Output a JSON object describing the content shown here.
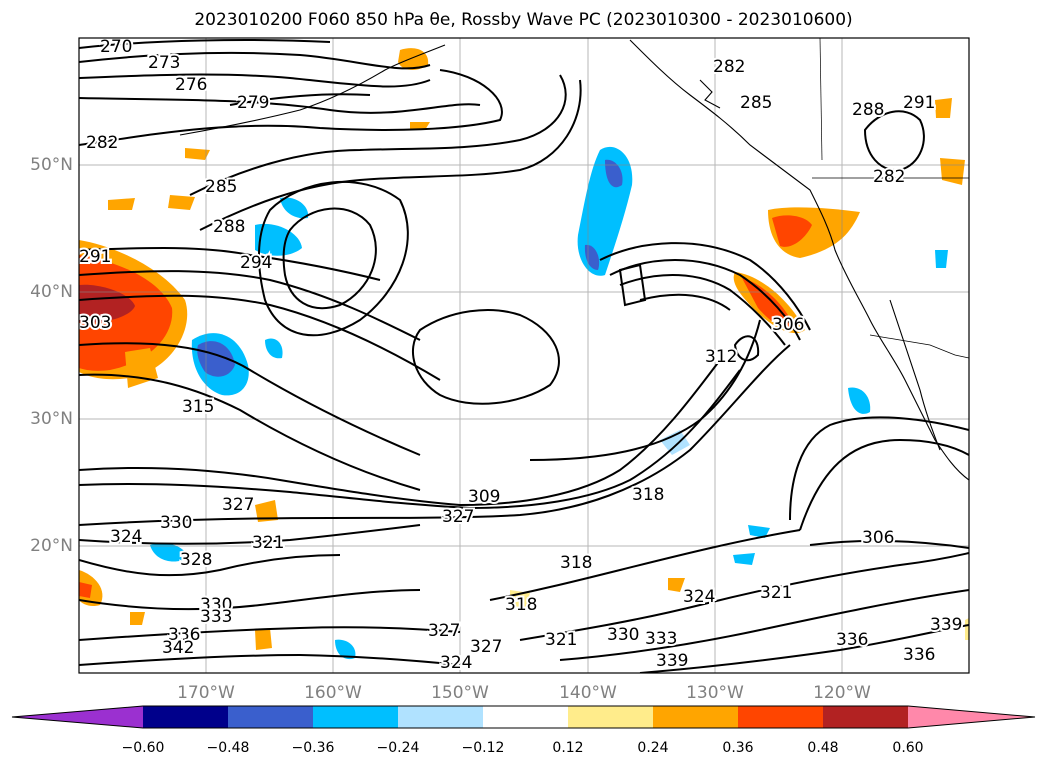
{
  "title": "2023010200 F060 850 hPa θe, Rossby Wave PC (2023010300 - 2023010600)",
  "axes": {
    "lat_ticks": [
      "50°N",
      "40°N",
      "30°N",
      "20°N"
    ],
    "lon_ticks": [
      "170°W",
      "160°W",
      "150°W",
      "140°W",
      "130°W",
      "120°W"
    ]
  },
  "colorbar": {
    "ticks": [
      "−0.60",
      "−0.48",
      "−0.36",
      "−0.24",
      "−0.12",
      "0.12",
      "0.24",
      "0.36",
      "0.48",
      "0.60"
    ],
    "colors": [
      "#9b30d0",
      "#00008b",
      "#3a5fcd",
      "#00bfff",
      "#b0e2ff",
      "#ffffff",
      "#ffec8b",
      "#ffa500",
      "#ff4500",
      "#b22222",
      "#ff88aa"
    ]
  },
  "contour_labels": [
    {
      "text": "270"
    },
    {
      "text": "273"
    },
    {
      "text": "276"
    },
    {
      "text": "279"
    },
    {
      "text": "282"
    },
    {
      "text": "285"
    },
    {
      "text": "288"
    },
    {
      "text": "294"
    },
    {
      "text": "291"
    },
    {
      "text": "303"
    },
    {
      "text": "315"
    },
    {
      "text": "327"
    },
    {
      "text": "330"
    },
    {
      "text": "324"
    },
    {
      "text": "321"
    },
    {
      "text": "328"
    },
    {
      "text": "330"
    },
    {
      "text": "333"
    },
    {
      "text": "336"
    },
    {
      "text": "342"
    },
    {
      "text": "309"
    },
    {
      "text": "327"
    },
    {
      "text": "318"
    },
    {
      "text": "318"
    },
    {
      "text": "318"
    },
    {
      "text": "324"
    },
    {
      "text": "327"
    },
    {
      "text": "327"
    },
    {
      "text": "321"
    },
    {
      "text": "330"
    },
    {
      "text": "333"
    },
    {
      "text": "339"
    },
    {
      "text": "324"
    },
    {
      "text": "321"
    },
    {
      "text": "336"
    },
    {
      "text": "336"
    },
    {
      "text": "339"
    },
    {
      "text": "306"
    },
    {
      "text": "312"
    },
    {
      "text": "306"
    },
    {
      "text": "282"
    },
    {
      "text": "285"
    },
    {
      "text": "288"
    },
    {
      "text": "282"
    },
    {
      "text": "291"
    }
  ]
}
